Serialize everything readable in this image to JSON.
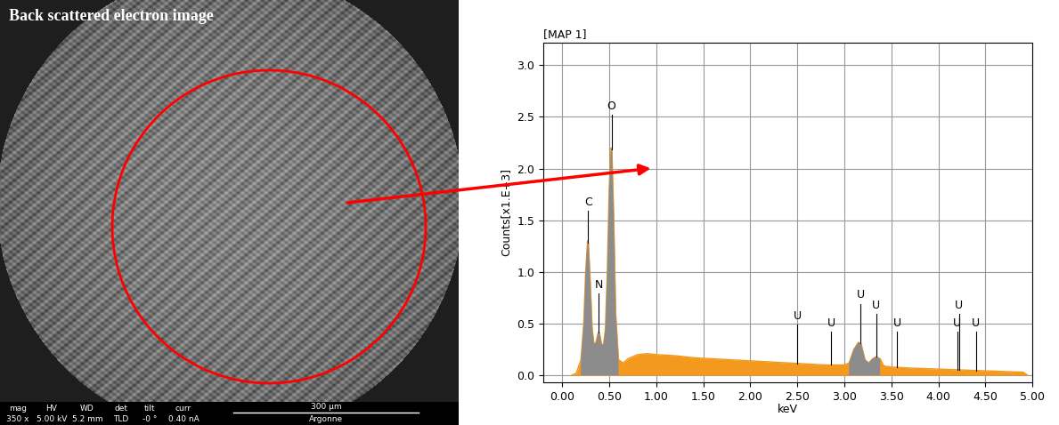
{
  "image": {
    "title": "Back scattered electron image",
    "info_bar": {
      "labels": [
        "mag",
        "HV",
        "WD",
        "det",
        "tilt",
        "curr"
      ],
      "values": [
        "350 x",
        "5.00 kV",
        "5.2 mm",
        "TLD",
        "-0 °",
        "0.40 nA"
      ]
    },
    "scale_bar": "300 μm",
    "institution": "Argonne"
  },
  "chart_data": {
    "type": "line",
    "title": "[MAP 1]",
    "x_label": "keV",
    "y_label": "Counts[x1.E+3]",
    "color": "#f39a1e",
    "grid": true,
    "x": [
      0.1,
      0.15,
      0.2,
      0.23,
      0.25,
      0.27,
      0.28,
      0.3,
      0.32,
      0.34,
      0.36,
      0.38,
      0.39,
      0.4,
      0.42,
      0.44,
      0.46,
      0.48,
      0.5,
      0.52,
      0.53,
      0.55,
      0.57,
      0.6,
      0.65,
      0.7,
      0.8,
      0.9,
      1.0,
      1.2,
      1.4,
      1.6,
      1.8,
      2.0,
      2.2,
      2.4,
      2.6,
      2.8,
      3.0,
      3.05,
      3.1,
      3.15,
      3.18,
      3.22,
      3.26,
      3.3,
      3.34,
      3.38,
      3.42,
      3.5,
      3.7,
      4.0,
      4.3,
      4.6,
      4.9,
      4.95
    ],
    "values": [
      0.0,
      0.02,
      0.15,
      0.5,
      1.0,
      1.3,
      1.28,
      0.9,
      0.45,
      0.3,
      0.32,
      0.4,
      0.42,
      0.4,
      0.3,
      0.3,
      0.45,
      1.0,
      1.8,
      2.2,
      2.18,
      1.5,
      0.6,
      0.15,
      0.12,
      0.16,
      0.2,
      0.21,
      0.2,
      0.19,
      0.17,
      0.16,
      0.15,
      0.14,
      0.13,
      0.12,
      0.11,
      0.1,
      0.1,
      0.12,
      0.25,
      0.32,
      0.3,
      0.15,
      0.12,
      0.16,
      0.18,
      0.16,
      0.09,
      0.08,
      0.07,
      0.06,
      0.05,
      0.04,
      0.03,
      0.0
    ],
    "peak_values": [
      null,
      null,
      0.15,
      0.5,
      1.0,
      1.3,
      1.28,
      0.9,
      0.45,
      0.3,
      0.32,
      0.4,
      0.42,
      0.4,
      0.3,
      0.3,
      0.45,
      1.0,
      1.8,
      2.2,
      2.18,
      1.5,
      0.6,
      0.15,
      null,
      null,
      null,
      null,
      null,
      null,
      null,
      null,
      null,
      null,
      null,
      null,
      null,
      null,
      null,
      0.12,
      0.25,
      0.32,
      0.3,
      0.15,
      0.12,
      0.16,
      0.18,
      0.16,
      null,
      null,
      null,
      null,
      null,
      null,
      null,
      null
    ],
    "peak_labels": [
      {
        "text": "C",
        "x": 0.277,
        "y": 1.62
      },
      {
        "text": "N",
        "x": 0.392,
        "y": 0.82
      },
      {
        "text": "O",
        "x": 0.525,
        "y": 2.55
      },
      {
        "text": "U",
        "x": 2.5,
        "y": 0.52
      },
      {
        "text": "U",
        "x": 2.86,
        "y": 0.45
      },
      {
        "text": "U",
        "x": 3.17,
        "y": 0.72
      },
      {
        "text": "U",
        "x": 3.34,
        "y": 0.62
      },
      {
        "text": "U",
        "x": 3.56,
        "y": 0.45
      },
      {
        "text": "U",
        "x": 4.22,
        "y": 0.62
      },
      {
        "text": "U",
        "x": 4.2,
        "y": 0.45
      },
      {
        "text": "U",
        "x": 4.4,
        "y": 0.45
      }
    ],
    "xlim": [
      -0.2,
      5.0
    ],
    "ylim": [
      -0.07,
      3.22
    ],
    "xticks": [
      {
        "value": 0.0,
        "label": "0.00"
      },
      {
        "value": 0.5,
        "label": "0.50"
      },
      {
        "value": 1.0,
        "label": "1.00"
      },
      {
        "value": 1.5,
        "label": "1.50"
      },
      {
        "value": 2.0,
        "label": "2.00"
      },
      {
        "value": 2.5,
        "label": "2.50"
      },
      {
        "value": 3.0,
        "label": "3.00"
      },
      {
        "value": 3.5,
        "label": "3.50"
      },
      {
        "value": 4.0,
        "label": "4.00"
      },
      {
        "value": 4.5,
        "label": "4.50"
      },
      {
        "value": 5.0,
        "label": "5.00"
      }
    ],
    "yticks": [
      0.0,
      0.5,
      1.0,
      1.5,
      2.0,
      2.5,
      3.0
    ]
  }
}
